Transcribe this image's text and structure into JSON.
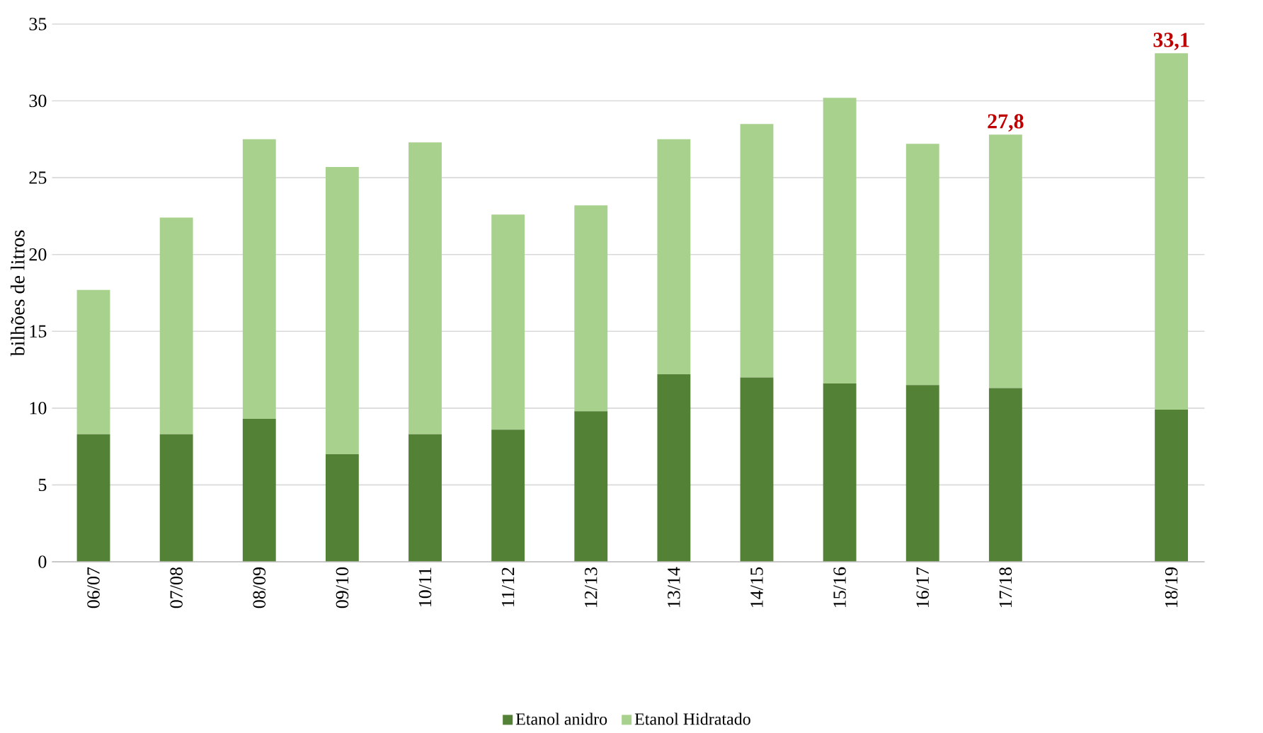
{
  "chart_data": {
    "type": "bar",
    "stacked": true,
    "ylabel": "bilhões de litros",
    "categories": [
      "06/07",
      "07/08",
      "08/09",
      "09/10",
      "10/11",
      "11/12",
      "12/13",
      "13/14",
      "14/15",
      "15/16",
      "16/17",
      "17/18",
      null,
      "18/19"
    ],
    "series": [
      {
        "name": "Etanol anidro",
        "color": "#538135",
        "values": [
          8.3,
          8.3,
          9.3,
          7.0,
          8.3,
          8.6,
          9.8,
          12.2,
          12.0,
          11.6,
          11.5,
          11.3,
          null,
          9.9
        ]
      },
      {
        "name": "Etanol Hidratado",
        "color": "#a9d18e",
        "values": [
          9.4,
          14.1,
          18.2,
          18.7,
          19.0,
          14.0,
          13.4,
          15.3,
          16.5,
          18.6,
          15.7,
          16.5,
          null,
          23.2
        ]
      }
    ],
    "totals": [
      null,
      null,
      null,
      null,
      null,
      null,
      null,
      null,
      null,
      null,
      null,
      "27,8",
      null,
      "33,1"
    ],
    "ylim": [
      0,
      35
    ],
    "yticks": [
      0,
      5,
      10,
      15,
      20,
      25,
      30,
      35
    ],
    "grid": "y",
    "legend": "bottom"
  }
}
